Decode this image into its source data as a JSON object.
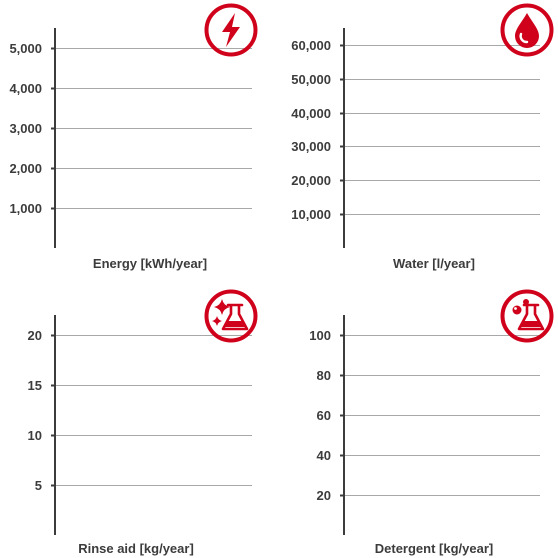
{
  "accent_color": "#d0021b",
  "chart_data": [
    {
      "type": "bar",
      "xlabel": "Energy [kWh/year]",
      "icon": "lightning-bolt-icon",
      "yticks": [
        "1,000",
        "2,000",
        "3,000",
        "4,000",
        "5,000"
      ],
      "ytick_values": [
        1000,
        2000,
        3000,
        4000,
        5000
      ],
      "ylim": [
        0,
        5500
      ],
      "grid": true,
      "values": []
    },
    {
      "type": "bar",
      "xlabel": "Water [l/year]",
      "icon": "water-drop-icon",
      "yticks": [
        "10,000",
        "20,000",
        "30,000",
        "40,000",
        "50,000",
        "60,000"
      ],
      "ytick_values": [
        10000,
        20000,
        30000,
        40000,
        50000,
        60000
      ],
      "ylim": [
        0,
        65000
      ],
      "grid": true,
      "values": []
    },
    {
      "type": "bar",
      "xlabel": "Rinse aid [kg/year]",
      "icon": "sparkle-flask-icon",
      "yticks": [
        "5",
        "10",
        "15",
        "20"
      ],
      "ytick_values": [
        5,
        10,
        15,
        20
      ],
      "ylim": [
        0,
        22
      ],
      "grid": true,
      "values": []
    },
    {
      "type": "bar",
      "xlabel": "Detergent [kg/year]",
      "icon": "bubbles-flask-icon",
      "yticks": [
        "20",
        "40",
        "60",
        "80",
        "100"
      ],
      "ytick_values": [
        20,
        40,
        60,
        80,
        100
      ],
      "ylim": [
        0,
        110
      ],
      "grid": true,
      "values": []
    }
  ]
}
